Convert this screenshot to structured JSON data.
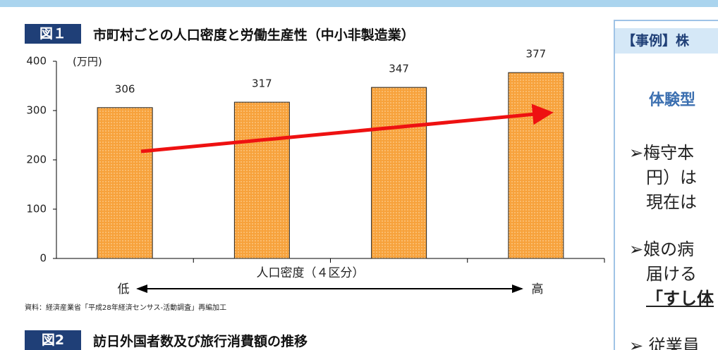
{
  "chart_data": {
    "type": "bar",
    "figure_label": "図１",
    "title": "市町村ごとの人口密度と労働生産性（中小非製造業）",
    "unit": "(万円)",
    "x_label": "人口密度（４区分）",
    "x_low": "低",
    "x_high": "高",
    "categories": [
      null,
      null,
      null,
      null
    ],
    "values": [
      306,
      317,
      347,
      377
    ],
    "color": "#f7a23c",
    "ylim": [
      0,
      400
    ],
    "yticks": [
      0,
      100,
      200,
      300,
      400
    ],
    "source": "資料：経済産業省「平成28年経済センサス-活動調査」再編加工"
  },
  "figure2": {
    "label": "図2",
    "title": "訪日外国者数及び旅行消費額の推移"
  },
  "side_panel": {
    "header": "【事例】株",
    "subtitle": "体験型",
    "lines": [
      "➢梅守本",
      "円）は",
      "現在は",
      "➢娘の病",
      "届ける",
      "「すし体",
      "➢ 従業員"
    ]
  }
}
